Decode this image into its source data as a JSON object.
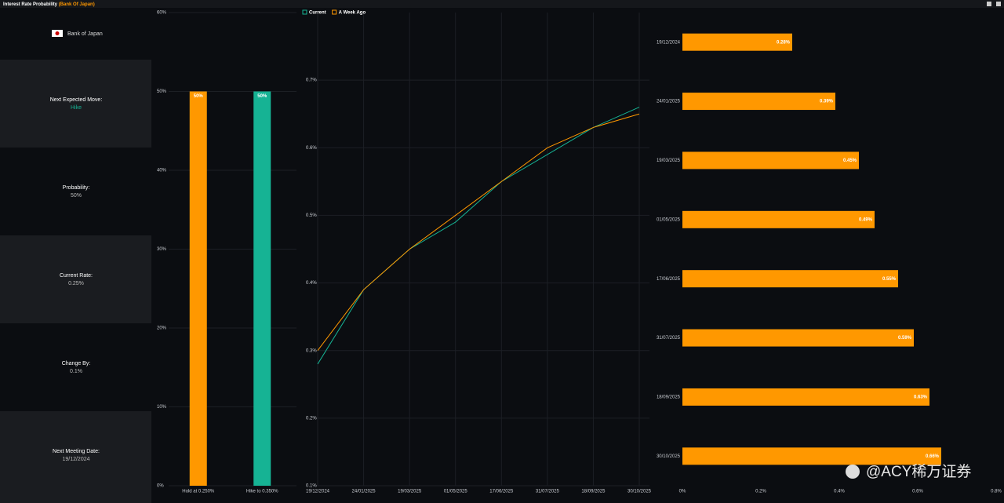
{
  "header": {
    "title": "Interest Rate Probability",
    "subtitle": "(Bank Of Japan)"
  },
  "panel": {
    "title": "Bank of Japan",
    "items": [
      {
        "label": "Next Expected Move:",
        "value": "Hike"
      },
      {
        "label": "Probability:",
        "value": "50%"
      },
      {
        "label": "Current Rate:",
        "value": "0.25%"
      },
      {
        "label": "Change By:",
        "value": "0.1%"
      },
      {
        "label": "Next Meeting Date:",
        "value": "19/12/2024"
      }
    ]
  },
  "chart_data": [
    {
      "type": "bar",
      "categories": [
        "Hold at 0.250%",
        "Hike to 0.350%"
      ],
      "values": [
        50,
        50
      ],
      "value_labels": [
        "50%",
        "50%"
      ],
      "colors": [
        "#ff9800",
        "#16b394"
      ],
      "ylim": [
        0,
        60
      ],
      "yticks": [
        {
          "value": 0,
          "label": "0%"
        },
        {
          "value": 10,
          "label": "10%"
        },
        {
          "value": 20,
          "label": "20%"
        },
        {
          "value": 30,
          "label": "30%"
        },
        {
          "value": 40,
          "label": "40%"
        },
        {
          "value": 50,
          "label": "50%"
        },
        {
          "value": 60,
          "label": "60%"
        }
      ],
      "grid": true
    },
    {
      "type": "line",
      "categories": [
        "19/12/2024",
        "24/01/2025",
        "19/03/2025",
        "01/05/2025",
        "17/06/2025",
        "31/07/2025",
        "18/09/2025",
        "30/10/2025"
      ],
      "series": [
        {
          "name": "Current",
          "color": "#16b394",
          "values": [
            0.28,
            0.39,
            0.45,
            0.49,
            0.55,
            0.59,
            0.63,
            0.66
          ]
        },
        {
          "name": "A Week Ago",
          "color": "#ff9800",
          "values": [
            0.3,
            0.39,
            0.45,
            0.5,
            0.55,
            0.6,
            0.63,
            0.65
          ]
        }
      ],
      "ylim": [
        0.1,
        0.8
      ],
      "yticks": [
        {
          "value": 0.1,
          "label": "0.1%"
        },
        {
          "value": 0.2,
          "label": "0.2%"
        },
        {
          "value": 0.3,
          "label": "0.3%"
        },
        {
          "value": 0.4,
          "label": "0.4%"
        },
        {
          "value": 0.5,
          "label": "0.5%"
        },
        {
          "value": 0.6,
          "label": "0.6%"
        },
        {
          "value": 0.7,
          "label": "0.7%"
        }
      ],
      "grid": true
    },
    {
      "type": "barh",
      "categories": [
        "19/12/2024",
        "24/01/2025",
        "19/03/2025",
        "01/05/2025",
        "17/06/2025",
        "31/07/2025",
        "18/09/2025",
        "30/10/2025"
      ],
      "values": [
        0.28,
        0.39,
        0.45,
        0.49,
        0.55,
        0.59,
        0.63,
        0.66
      ],
      "value_labels": [
        "0.28%",
        "0.39%",
        "0.45%",
        "0.49%",
        "0.55%",
        "0.59%",
        "0.63%",
        "0.66%"
      ],
      "color": "#ff9800",
      "xlim": [
        0,
        0.8
      ],
      "xticks": [
        {
          "value": 0,
          "label": "0%"
        },
        {
          "value": 0.2,
          "label": "0.2%"
        },
        {
          "value": 0.4,
          "label": "0.4%"
        },
        {
          "value": 0.6,
          "label": "0.6%"
        },
        {
          "value": 0.8,
          "label": "0.8%"
        }
      ],
      "grid": false
    }
  ],
  "watermark": "@ACY稀万证券"
}
